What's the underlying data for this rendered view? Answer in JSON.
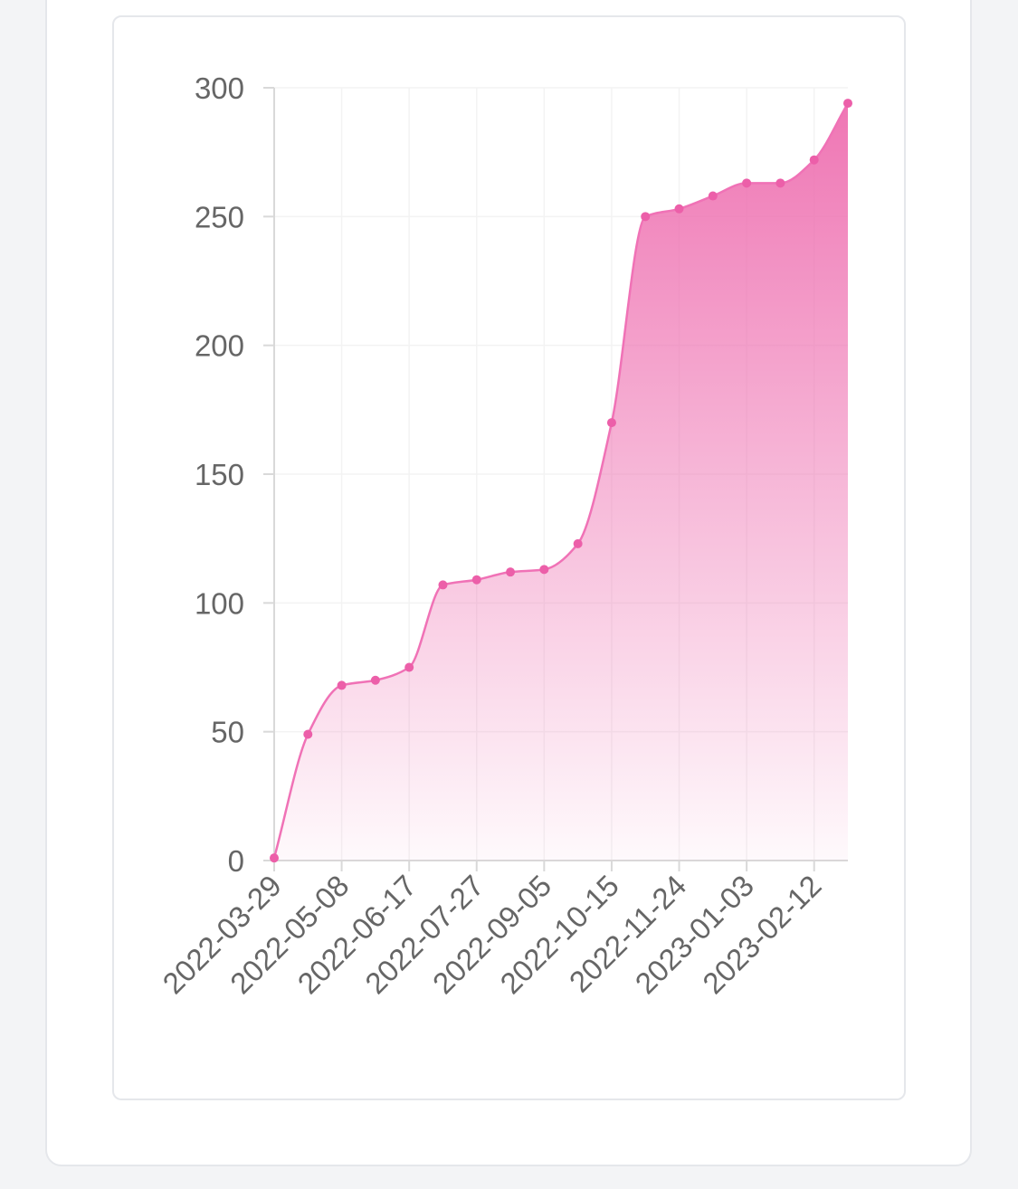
{
  "colors": {
    "line": "#f072b6",
    "point": "#ec5fa9",
    "fill_top": "#ee6fb0",
    "axis": "#d9d9d9",
    "grid": "#f3f3f3"
  },
  "chart_data": {
    "type": "area",
    "title": "",
    "xlabel": "",
    "ylabel": "",
    "ylim": [
      0,
      300
    ],
    "yticks": [
      0,
      50,
      100,
      150,
      200,
      250,
      300
    ],
    "xticks": [
      "2022-03-29",
      "2022-05-08",
      "2022-06-17",
      "2022-07-27",
      "2022-09-05",
      "2022-10-15",
      "2022-11-24",
      "2023-01-03",
      "2023-02-12"
    ],
    "grid": true,
    "legend": "none",
    "series": [
      {
        "x": [
          "2022-03-29",
          "2022-04-18",
          "2022-05-08",
          "2022-05-28",
          "2022-06-17",
          "2022-07-07",
          "2022-07-27",
          "2022-08-16",
          "2022-09-05",
          "2022-09-25",
          "2022-10-15",
          "2022-11-04",
          "2022-11-24",
          "2022-12-14",
          "2023-01-03",
          "2023-01-23",
          "2023-02-12",
          "2023-03-04"
        ],
        "values": [
          1,
          49,
          68,
          70,
          75,
          107,
          109,
          112,
          113,
          123,
          170,
          250,
          253,
          258,
          263,
          263,
          272,
          294
        ]
      }
    ]
  }
}
